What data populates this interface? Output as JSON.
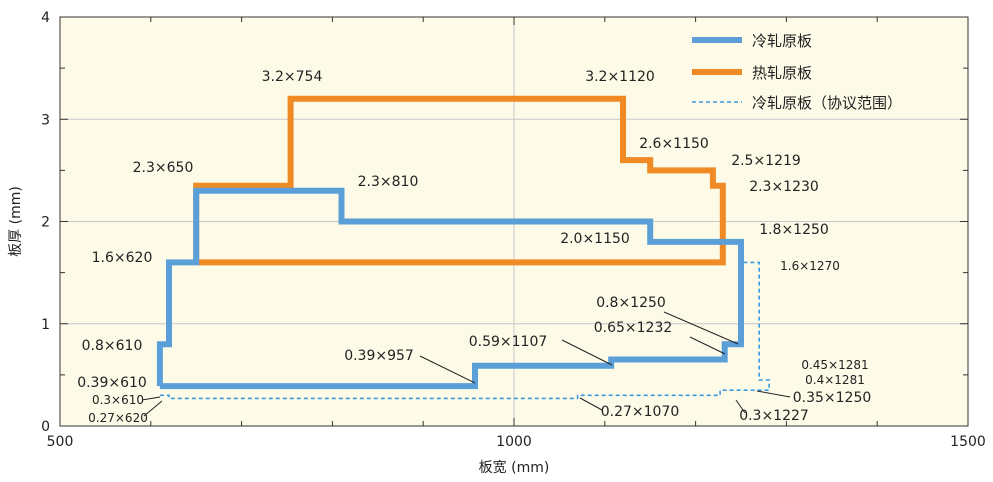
{
  "chart_data": {
    "type": "line",
    "xlabel": "板宽 (mm)",
    "ylabel": "板厚 (mm)",
    "xlim": [
      500,
      1500
    ],
    "ylim": [
      0,
      4
    ],
    "x_ticks": [
      500,
      1000,
      1500
    ],
    "y_ticks": [
      0,
      1,
      2,
      3,
      4
    ],
    "grid": true,
    "legend_position": "top-right",
    "colors": {
      "cold": "#5b9fd8",
      "hot": "#f08a24",
      "plot_bg": "#fdfbe8",
      "grid": "#c8c8c8"
    },
    "series": [
      {
        "name": "冷轧原板",
        "style": "solid-thick",
        "color": "#5b9fd8",
        "points": [
          [
            610,
            0.39
          ],
          [
            610,
            0.8
          ],
          [
            620,
            0.8
          ],
          [
            620,
            1.6
          ],
          [
            650,
            1.6
          ],
          [
            650,
            2.3
          ],
          [
            810,
            2.3
          ],
          [
            810,
            2.0
          ],
          [
            1150,
            2.0
          ],
          [
            1150,
            1.8
          ],
          [
            1250,
            1.8
          ],
          [
            1250,
            0.8
          ],
          [
            1232,
            0.8
          ],
          [
            1232,
            0.65
          ],
          [
            1107,
            0.65
          ],
          [
            1107,
            0.59
          ],
          [
            957,
            0.59
          ],
          [
            957,
            0.39
          ],
          [
            610,
            0.39
          ]
        ]
      },
      {
        "name": "热轧原板",
        "style": "solid-thick",
        "color": "#f08a24",
        "points": [
          [
            650,
            1.6
          ],
          [
            650,
            2.35
          ],
          [
            754,
            2.35
          ],
          [
            754,
            3.2
          ],
          [
            1120,
            3.2
          ],
          [
            1120,
            2.6
          ],
          [
            1150,
            2.6
          ],
          [
            1150,
            2.5
          ],
          [
            1219,
            2.5
          ],
          [
            1219,
            2.35
          ],
          [
            1230,
            2.35
          ],
          [
            1230,
            1.6
          ],
          [
            650,
            1.6
          ]
        ]
      },
      {
        "name": "冷轧原板（协议范围）",
        "style": "dashed-thin",
        "color": "#3a9ae0",
        "points": [
          [
            610,
            0.3
          ],
          [
            620,
            0.3
          ],
          [
            620,
            0.27
          ],
          [
            1070,
            0.27
          ],
          [
            1070,
            0.3
          ],
          [
            1227,
            0.3
          ],
          [
            1227,
            0.35
          ],
          [
            1281,
            0.35
          ],
          [
            1281,
            0.4
          ],
          [
            1281,
            0.45
          ],
          [
            1270,
            0.45
          ],
          [
            1270,
            1.6
          ],
          [
            1250,
            1.6
          ]
        ]
      }
    ],
    "annotations": [
      {
        "text": "3.2×754",
        "x": 754,
        "y": 3.2
      },
      {
        "text": "3.2×1120",
        "x": 1120,
        "y": 3.2
      },
      {
        "text": "2.3×650",
        "x": 650,
        "y": 2.3
      },
      {
        "text": "2.3×810",
        "x": 810,
        "y": 2.3
      },
      {
        "text": "2.6×1150",
        "x": 1150,
        "y": 2.6
      },
      {
        "text": "2.5×1219",
        "x": 1219,
        "y": 2.5
      },
      {
        "text": "2.3×1230",
        "x": 1230,
        "y": 2.3
      },
      {
        "text": "2.0×1150",
        "x": 1150,
        "y": 2.0
      },
      {
        "text": "1.8×1250",
        "x": 1250,
        "y": 1.8
      },
      {
        "text": "1.6×620",
        "x": 620,
        "y": 1.6
      },
      {
        "text": "1.6×1270",
        "x": 1270,
        "y": 1.6
      },
      {
        "text": "0.8×610",
        "x": 610,
        "y": 0.8
      },
      {
        "text": "0.8×1250",
        "x": 1250,
        "y": 0.8
      },
      {
        "text": "0.65×1232",
        "x": 1232,
        "y": 0.65
      },
      {
        "text": "0.59×1107",
        "x": 1107,
        "y": 0.59
      },
      {
        "text": "0.39×957",
        "x": 957,
        "y": 0.39
      },
      {
        "text": "0.39×610",
        "x": 610,
        "y": 0.39
      },
      {
        "text": "0.3×610",
        "x": 610,
        "y": 0.3
      },
      {
        "text": "0.27×620",
        "x": 620,
        "y": 0.27
      },
      {
        "text": "0.27×1070",
        "x": 1070,
        "y": 0.27
      },
      {
        "text": "0.3×1227",
        "x": 1227,
        "y": 0.3
      },
      {
        "text": "0.35×1250",
        "x": 1250,
        "y": 0.35
      },
      {
        "text": "0.4×1281",
        "x": 1281,
        "y": 0.4
      },
      {
        "text": "0.45×1281",
        "x": 1281,
        "y": 0.45
      }
    ]
  }
}
